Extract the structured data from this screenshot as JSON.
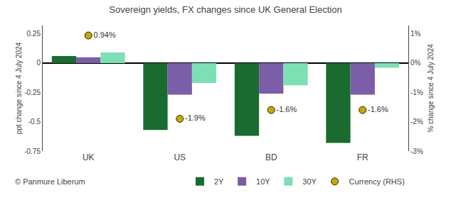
{
  "chart_data": {
    "type": "bar",
    "title": "Sovereign yields, FX changes since UK General Election",
    "categories": [
      "UK",
      "US",
      "BD",
      "FR"
    ],
    "series": [
      {
        "name": "2Y",
        "color": "#1a6b2f",
        "values": [
          0.06,
          -0.57,
          -0.62,
          -0.68
        ]
      },
      {
        "name": "10Y",
        "color": "#7b5ea7",
        "values": [
          0.05,
          -0.27,
          -0.26,
          -0.27
        ]
      },
      {
        "name": "30Y",
        "color": "#7de0b5",
        "values": [
          0.09,
          -0.17,
          -0.19,
          -0.04
        ]
      },
      {
        "name": "Currency (RHS)",
        "type": "scatter",
        "axis": "y2",
        "marker": "circle",
        "color": "#c8a800",
        "values": [
          0.94,
          -1.9,
          -1.6,
          -1.6
        ],
        "data_labels": true,
        "value_labels": [
          "0.94%",
          "-1.9%",
          "-1.6%",
          "-1.6%"
        ]
      }
    ],
    "ylabel": "ppt change since 4 July 2024",
    "y2label": "% change since 4 July 2024",
    "ylim": [
      -0.75,
      0.32
    ],
    "yticks": [
      -0.75,
      -0.5,
      -0.25,
      0,
      0.25
    ],
    "y2lim": [
      -3.0,
      1.28
    ],
    "y2ticks": [
      {
        "value": -3,
        "label": "-3%"
      },
      {
        "value": -2,
        "label": "-2%"
      },
      {
        "value": -1,
        "label": "-1%"
      },
      {
        "value": 0,
        "label": "0%"
      },
      {
        "value": 1,
        "label": "1%"
      }
    ],
    "grid": false,
    "legend": "bottom",
    "annotations": [
      "© Panmure Liberum"
    ]
  }
}
